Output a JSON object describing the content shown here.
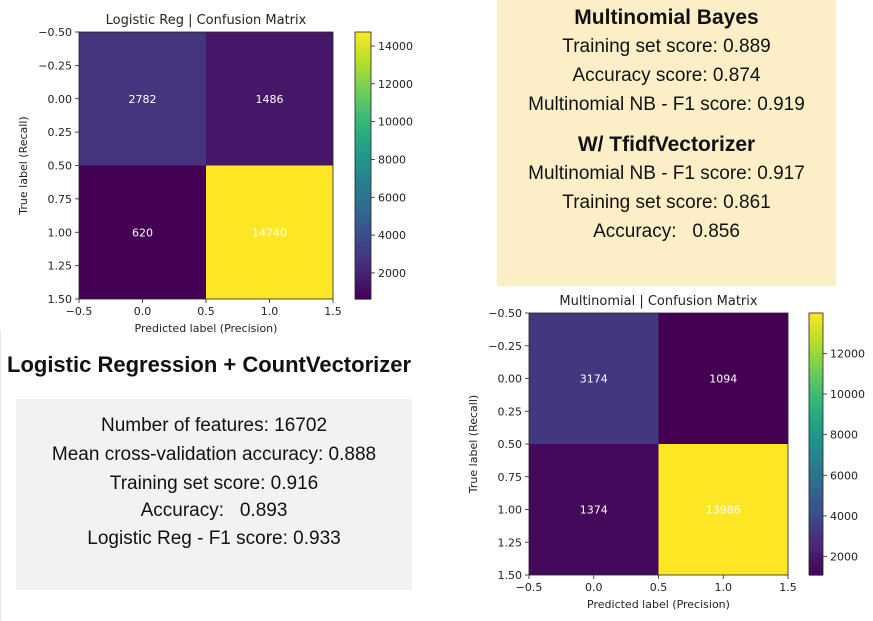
{
  "chart_data": [
    {
      "type": "heatmap",
      "title": "Logistic Reg | Confusion Matrix",
      "xlabel": "Predicted label (Precision)",
      "ylabel": "True label (Recall)",
      "xlim": [
        -0.5,
        1.5
      ],
      "ylim": [
        -0.5,
        1.5
      ],
      "x_ticks": [
        "−0.5",
        "0.0",
        "0.5",
        "1.0",
        "1.5"
      ],
      "y_ticks": [
        "−0.50",
        "−0.25",
        "0.00",
        "0.25",
        "0.50",
        "0.75",
        "1.00",
        "1.25",
        "1.50"
      ],
      "matrix": [
        [
          2782,
          1486
        ],
        [
          620,
          14740
        ]
      ],
      "colorbar_ticks": [
        "2000",
        "4000",
        "6000",
        "8000",
        "10000",
        "12000",
        "14000"
      ],
      "colorbar_range": [
        620,
        14740
      ],
      "colormap": "viridis"
    },
    {
      "type": "heatmap",
      "title": "Multinomial | Confusion Matrix",
      "xlabel": "Predicted label (Precision)",
      "ylabel": "True label (Recall)",
      "xlim": [
        -0.5,
        1.5
      ],
      "ylim": [
        -0.5,
        1.5
      ],
      "x_ticks": [
        "−0.5",
        "0.0",
        "0.5",
        "1.0",
        "1.5"
      ],
      "y_ticks": [
        "−0.50",
        "−0.25",
        "0.00",
        "0.25",
        "0.50",
        "0.75",
        "1.00",
        "1.25",
        "1.50"
      ],
      "matrix": [
        [
          3174,
          1094
        ],
        [
          1374,
          13986
        ]
      ],
      "colorbar_ticks": [
        "2000",
        "4000",
        "6000",
        "8000",
        "10000",
        "12000"
      ],
      "colorbar_range": [
        1094,
        13986
      ],
      "colormap": "viridis"
    }
  ],
  "bayes_panel": {
    "title": "Multinomial Bayes",
    "lines": [
      "Training set score: 0.889",
      "Accuracy score: 0.874",
      "Multinomial NB - F1 score: 0.919"
    ],
    "subtitle": "W/ TfidfVectorizer",
    "sublines": [
      "Multinomial NB - F1 score: 0.917",
      "Training set score: 0.861",
      "Accuracy:   0.856"
    ]
  },
  "lr_panel": {
    "title": "Logistic Regression + CountVectorizer",
    "lines": [
      "Number of features: 16702",
      "Mean cross-validation accuracy: 0.888",
      "Training set score: 0.916",
      "Accuracy:   0.893",
      "Logistic Reg - F1 score: 0.933"
    ]
  }
}
